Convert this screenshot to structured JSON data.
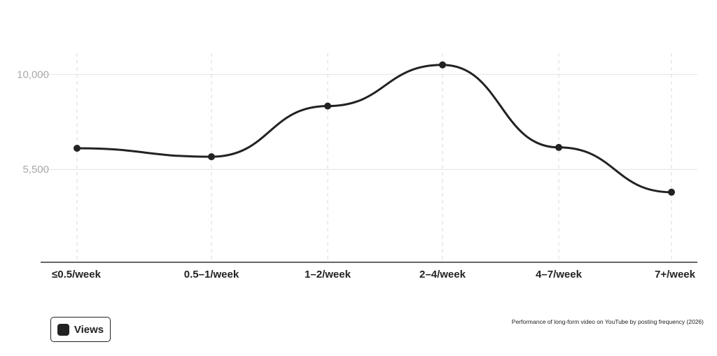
{
  "chart_data": {
    "type": "line",
    "categories": [
      "≤0.5/week",
      "0.5–1/week",
      "1–2/week",
      "2–4/week",
      "4–7/week",
      "7+/week"
    ],
    "series": [
      {
        "name": "Views",
        "values": [
          6500,
          6100,
          8500,
          10450,
          6540,
          4420
        ]
      }
    ],
    "yticks": [
      5500,
      10000
    ],
    "ytick_labels": [
      "5,500",
      "10,000"
    ],
    "ylim": [
      1100,
      12000
    ],
    "grid": true,
    "legend_position": "bottom-left",
    "caption": "Performance of long-form video on YouTube by posting frequency (2026)",
    "line_color": "#222222"
  },
  "legend": {
    "label": "Views"
  }
}
